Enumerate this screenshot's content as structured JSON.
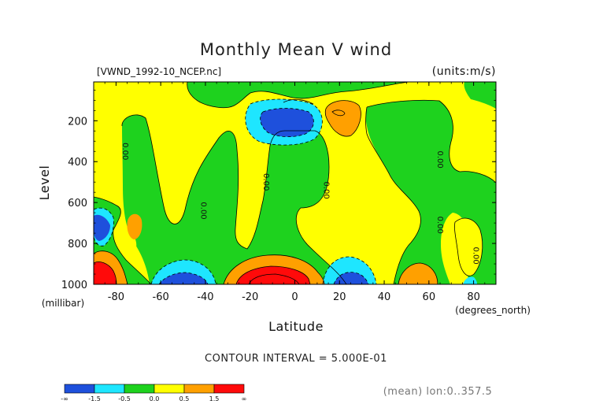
{
  "chart_data": {
    "type": "heatmap",
    "title": "Monthly Mean V wind",
    "subtitle_left": "[VWND_1992-10_NCEP.nc]",
    "subtitle_right": "(units:m/s)",
    "xlabel": "Latitude",
    "xunit": "(degrees_north)",
    "ylabel": "Level",
    "yunit": "(millibar)",
    "xlim": [
      -90,
      90
    ],
    "ylim": [
      1000,
      10
    ],
    "x_ticks": [
      {
        "v": -80,
        "label": "-80"
      },
      {
        "v": -60,
        "label": "-60"
      },
      {
        "v": -40,
        "label": "-40"
      },
      {
        "v": -20,
        "label": "-20"
      },
      {
        "v": 0,
        "label": "0"
      },
      {
        "v": 20,
        "label": "20"
      },
      {
        "v": 40,
        "label": "40"
      },
      {
        "v": 60,
        "label": "60"
      },
      {
        "v": 80,
        "label": "80"
      }
    ],
    "y_ticks": [
      {
        "v": 200,
        "label": "200"
      },
      {
        "v": 400,
        "label": "400"
      },
      {
        "v": 600,
        "label": "600"
      },
      {
        "v": 800,
        "label": "800"
      },
      {
        "v": 1000,
        "label": "1000"
      }
    ],
    "contour_interval_text": "CONTOUR INTERVAL = 5.000E-01",
    "mean_note": "(mean) lon:0..357.5",
    "zero_contour_labels": [
      {
        "lat": -77,
        "lev": 350,
        "text": "0.00"
      },
      {
        "lat": -42,
        "lev": 640,
        "text": "0.00"
      },
      {
        "lat": -14,
        "lev": 500,
        "text": "0.00"
      },
      {
        "lat": 13,
        "lev": 540,
        "text": "0.00"
      },
      {
        "lat": 64,
        "lev": 390,
        "text": "0.00"
      },
      {
        "lat": 64,
        "lev": 710,
        "text": "0.00"
      },
      {
        "lat": 80,
        "lev": 860,
        "text": "0.00"
      }
    ],
    "colorbar": {
      "colors": [
        "#1e50dc",
        "#1ee6ff",
        "#1ed21e",
        "#ffff00",
        "#ffa000",
        "#ff0a0a"
      ],
      "edge_labels": [
        "-∞",
        "-1.5",
        "-0.5",
        "0.0",
        "0.5",
        "1.5",
        "∞"
      ]
    },
    "palette": {
      "blue": "#1e50dc",
      "cyan": "#1ee6ff",
      "green": "#1ed21e",
      "yellow": "#ffff00",
      "orange": "#ffa000",
      "red": "#ff0a0a"
    }
  }
}
